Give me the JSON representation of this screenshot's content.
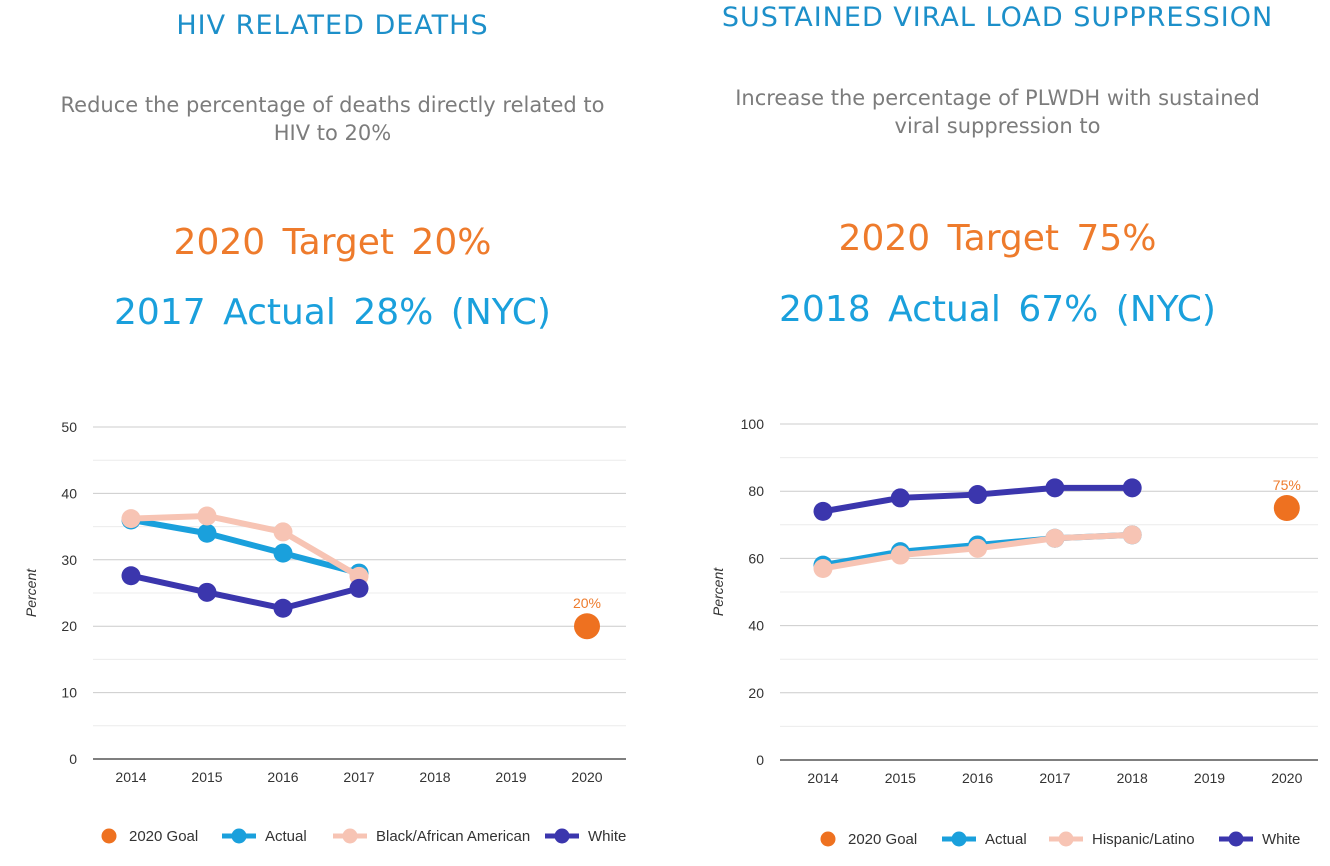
{
  "panels": [
    {
      "title": "HIV RELATED DEATHS",
      "subtitle_lines": [
        "Reduce the percentage of deaths directly related to",
        "HIV to 20%"
      ],
      "target": "2020 Target 20%",
      "actual": "2017 Actual 28% (NYC)"
    },
    {
      "title": "SUSTAINED VIRAL LOAD SUPPRESSION",
      "subtitle_lines": [
        "Increase the percentage of PLWDH with sustained",
        "viral suppression to"
      ],
      "target": "2020 Target 75%",
      "actual": "2018 Actual 67% (NYC)"
    }
  ],
  "colors": {
    "goal": "#ee7120",
    "actual": "#1aa0dc",
    "subgroup": "#f7c4b4",
    "white": "#3b36ad",
    "grid": "#cccccc",
    "title": "#1c8fc9"
  },
  "chart_data": [
    {
      "type": "line",
      "x": [
        "2014",
        "2015",
        "2016",
        "2017",
        "2018",
        "2019",
        "2020"
      ],
      "ylabel": "Percent",
      "ylim": [
        0,
        50
      ],
      "yticks": [
        0,
        10,
        20,
        30,
        40,
        50
      ],
      "grid": true,
      "legend_position": "bottom",
      "series": [
        {
          "name": "Actual",
          "color_key": "actual",
          "values": [
            36,
            34,
            31,
            28,
            null,
            null,
            null
          ]
        },
        {
          "name": "Black/African American",
          "color_key": "subgroup",
          "values": [
            36.2,
            36.6,
            34.2,
            27.5,
            null,
            null,
            null
          ]
        },
        {
          "name": "White",
          "color_key": "white",
          "values": [
            27.6,
            25.1,
            22.7,
            25.7,
            null,
            null,
            null
          ]
        },
        {
          "name": "2020 Goal",
          "color_key": "goal",
          "values": [
            null,
            null,
            null,
            null,
            null,
            null,
            20
          ],
          "label": "20%"
        }
      ],
      "legend": [
        "2020 Goal",
        "Actual",
        "Black/African American",
        "White"
      ]
    },
    {
      "type": "line",
      "x": [
        "2014",
        "2015",
        "2016",
        "2017",
        "2018",
        "2019",
        "2020"
      ],
      "ylabel": "Percent",
      "ylim": [
        0,
        100
      ],
      "yticks": [
        0,
        20,
        40,
        60,
        80,
        100
      ],
      "grid": true,
      "legend_position": "bottom",
      "series": [
        {
          "name": "Actual",
          "color_key": "actual",
          "values": [
            58,
            62,
            64,
            66,
            67,
            null,
            null
          ]
        },
        {
          "name": "Hispanic/Latino",
          "color_key": "subgroup",
          "values": [
            57,
            61,
            63,
            66,
            67,
            null,
            null
          ]
        },
        {
          "name": "White",
          "color_key": "white",
          "values": [
            74,
            78,
            79,
            81,
            81,
            null,
            null
          ]
        },
        {
          "name": "2020 Goal",
          "color_key": "goal",
          "values": [
            null,
            null,
            null,
            null,
            null,
            null,
            75
          ],
          "label": "75%"
        }
      ],
      "legend": [
        "2020 Goal",
        "Actual",
        "Hispanic/Latino",
        "White"
      ]
    }
  ]
}
